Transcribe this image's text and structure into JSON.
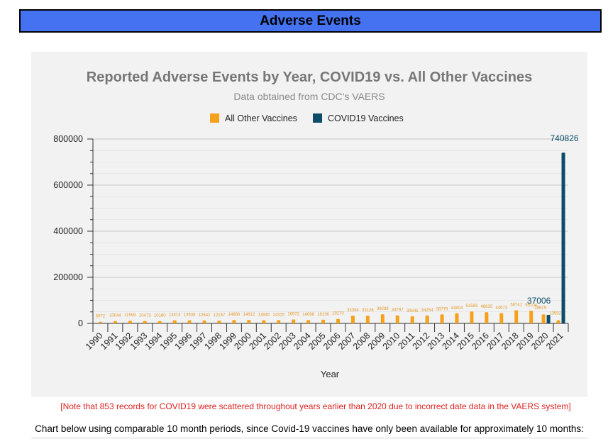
{
  "header": {
    "title": "Adverse Events"
  },
  "note": "[Note that 853 records for COVID19 were scattered throughout years earlier than 2020 due to incorrect date data in the VAERS system]",
  "bottom_text": "Chart below using comparable 10 month periods, since Covid-19 vaccines have only been available for approximately 10 months:",
  "chart_data": {
    "type": "bar",
    "title": "Reported Adverse Events by Year, COVID19 vs. All Other Vaccines",
    "subtitle": "Data obtained from CDC's VAERS",
    "xlabel": "Year",
    "ylabel": "",
    "ylim": [
      0,
      800000
    ],
    "y_ticks": [
      "0",
      "200000",
      "400000",
      "600000",
      "800000"
    ],
    "legend_position": "top",
    "grid": true,
    "categories": [
      "1990",
      "1991",
      "1992",
      "1993",
      "1994",
      "1995",
      "1996",
      "1997",
      "1998",
      "1999",
      "2000",
      "2001",
      "2002",
      "2003",
      "2004",
      "2005",
      "2006",
      "2007",
      "2008",
      "2009",
      "2010",
      "2011",
      "2012",
      "2013",
      "2014",
      "2015",
      "2016",
      "2017",
      "2018",
      "2019",
      "2020",
      "2021"
    ],
    "series": [
      {
        "name": "All Other Vaccines",
        "color": "#f5a11c",
        "values": [
          6972,
          10044,
          11599,
          10473,
          10160,
          13413,
          13538,
          12542,
          12157,
          14686,
          14812,
          13845,
          14315,
          16972,
          14698,
          16136,
          19270,
          33394,
          33126,
          39289,
          34797,
          30645,
          34254,
          38779,
          43804,
          51583,
          48635,
          44673,
          56741,
          55104,
          38819,
          13592
        ]
      },
      {
        "name": "COVID19 Vaccines",
        "color": "#0b4c6b",
        "values": [
          null,
          null,
          null,
          null,
          null,
          null,
          null,
          null,
          null,
          null,
          null,
          null,
          null,
          null,
          null,
          null,
          null,
          null,
          null,
          null,
          null,
          null,
          null,
          null,
          null,
          null,
          null,
          null,
          null,
          null,
          37006,
          740826
        ]
      }
    ]
  }
}
